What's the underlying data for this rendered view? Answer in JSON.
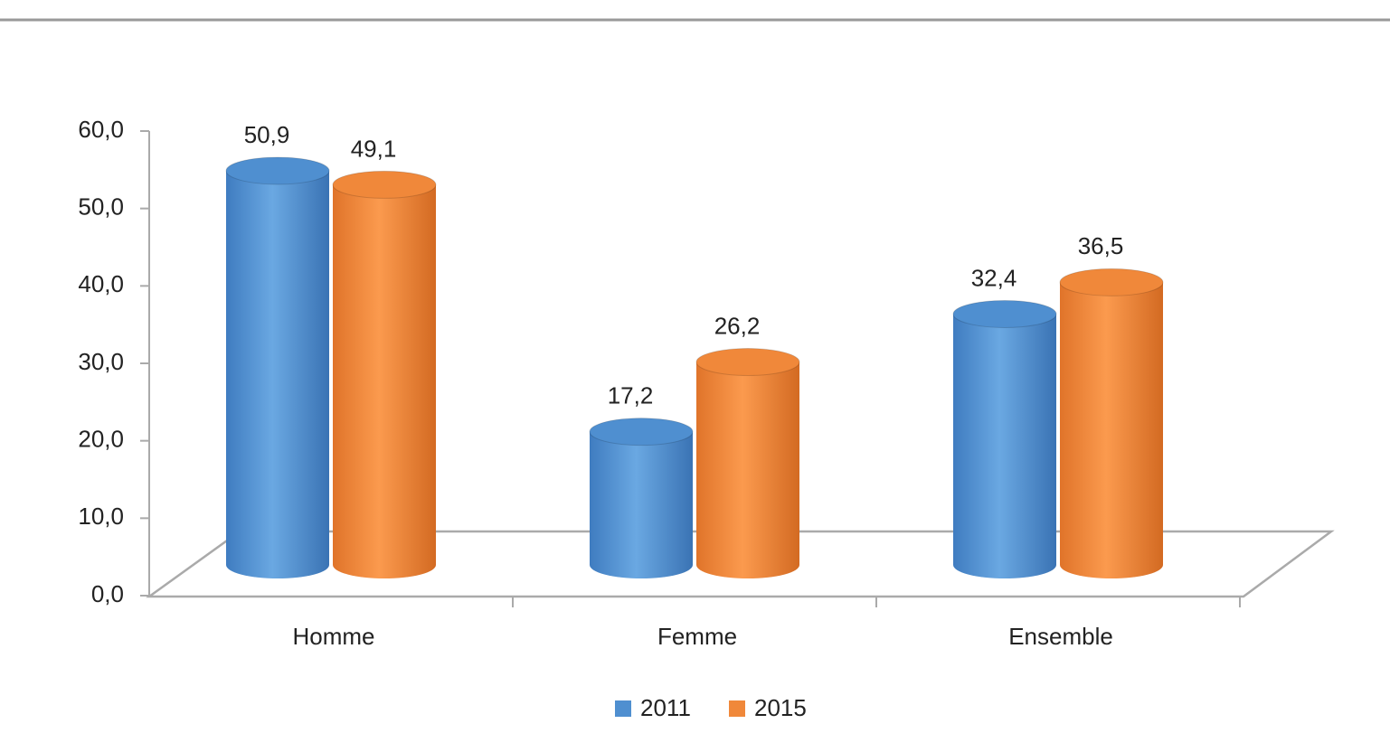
{
  "chart_data": {
    "type": "bar3d",
    "categories": [
      "Homme",
      "Femme",
      "Ensemble"
    ],
    "series": [
      {
        "name": "2011",
        "color": "#4f8fd0",
        "values": [
          50.9,
          17.2,
          32.4
        ],
        "value_labels": [
          "50,9",
          "17,2",
          "32,4"
        ]
      },
      {
        "name": "2015",
        "color": "#f0883a",
        "values": [
          49.1,
          26.2,
          36.5
        ],
        "value_labels": [
          "49,1",
          "26,2",
          "36,5"
        ]
      }
    ],
    "ylim": [
      0,
      60
    ],
    "yticks": [
      {
        "value": 0,
        "label": "0,0"
      },
      {
        "value": 10,
        "label": "10,0"
      },
      {
        "value": 20,
        "label": "20,0"
      },
      {
        "value": 30,
        "label": "30,0"
      },
      {
        "value": 40,
        "label": "40,0"
      },
      {
        "value": 50,
        "label": "50,0"
      },
      {
        "value": 60,
        "label": "60,0"
      }
    ],
    "legend": "bottom"
  }
}
